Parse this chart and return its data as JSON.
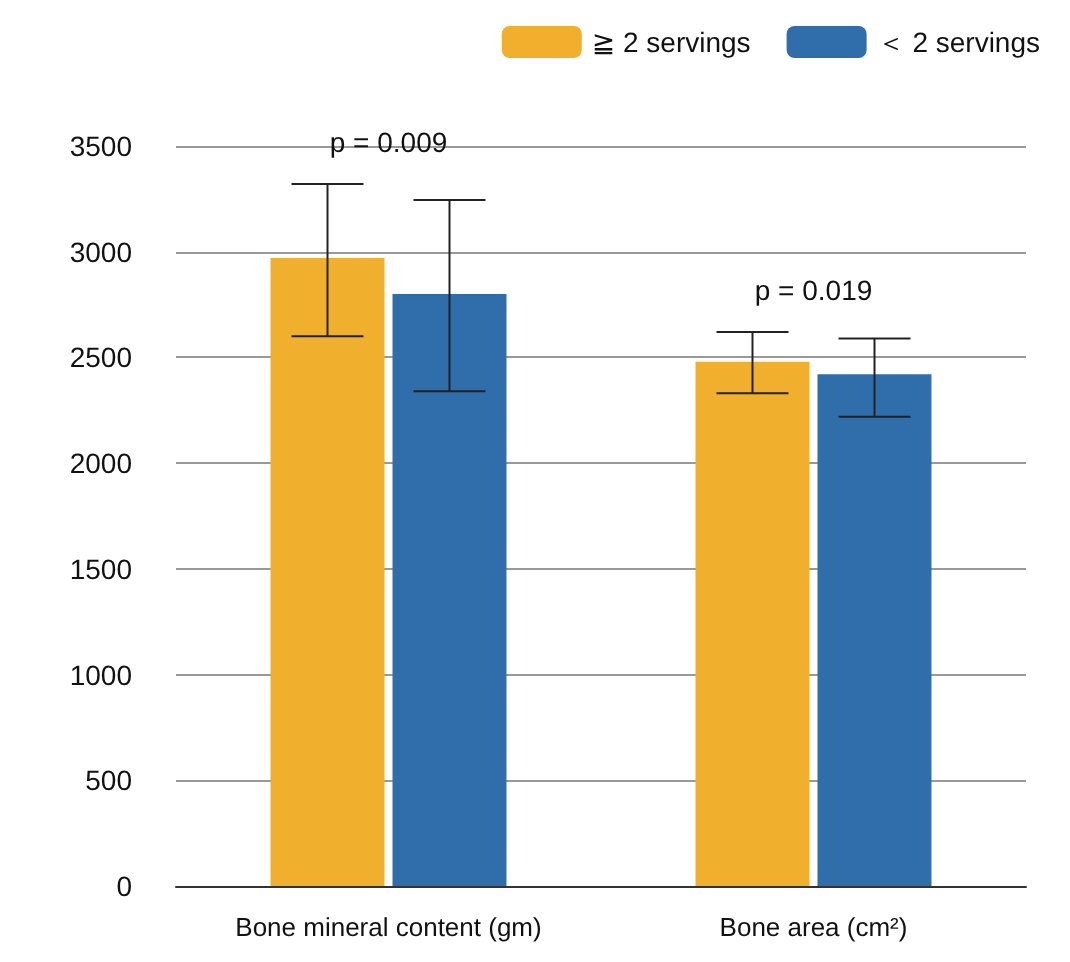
{
  "chart_data": {
    "type": "bar",
    "categories": [
      "Bone mineral content (gm)",
      "Bone area (cm²)"
    ],
    "series": [
      {
        "name": "≧ 2 servings",
        "color": "#f0b02e",
        "values": [
          2970,
          2480
        ],
        "errors": [
          [
            2600,
            3320
          ],
          [
            2330,
            2620
          ]
        ]
      },
      {
        "name": "＜ 2 servings",
        "color": "#2f6eab",
        "values": [
          2800,
          2420
        ],
        "errors": [
          [
            2340,
            3245
          ],
          [
            2220,
            2590
          ]
        ]
      }
    ],
    "ylim": [
      0,
      3500
    ],
    "yticks": [
      0,
      500,
      1000,
      1500,
      2000,
      2500,
      3000,
      3500
    ],
    "grid": "y",
    "legend": "top right",
    "annotations": [
      "p = 0.009",
      "p = 0.019"
    ]
  }
}
